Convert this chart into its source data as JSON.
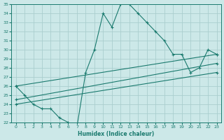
{
  "xlabel": "Humidex (Indice chaleur)",
  "ylabel": "",
  "bg_color": "#cce8e8",
  "line_color": "#1a7a6e",
  "grid_color": "#aacece",
  "xlim": [
    -0.5,
    23.5
  ],
  "ylim": [
    22,
    35
  ],
  "xticks": [
    0,
    1,
    2,
    3,
    4,
    5,
    6,
    7,
    8,
    9,
    10,
    11,
    12,
    13,
    14,
    15,
    16,
    17,
    18,
    19,
    20,
    21,
    22,
    23
  ],
  "yticks": [
    22,
    23,
    24,
    25,
    26,
    27,
    28,
    29,
    30,
    31,
    32,
    33,
    34,
    35
  ],
  "lines": [
    {
      "x": [
        0,
        1,
        2,
        3,
        4,
        5,
        6,
        7,
        8,
        9,
        10,
        11,
        12,
        13,
        14,
        15,
        16,
        17,
        18,
        19,
        20,
        21,
        22,
        23
      ],
      "y": [
        26.0,
        25.0,
        24.0,
        23.5,
        23.5,
        22.5,
        22.0,
        21.5,
        27.5,
        30.0,
        34.0,
        32.5,
        35.0,
        35.0,
        34.0,
        33.0,
        32.0,
        31.0,
        29.5,
        29.5,
        27.5,
        28.0,
        30.0,
        29.5
      ]
    },
    {
      "x": [
        0,
        23
      ],
      "y": [
        24.0,
        27.5
      ]
    },
    {
      "x": [
        0,
        23
      ],
      "y": [
        24.5,
        28.5
      ]
    },
    {
      "x": [
        0,
        23
      ],
      "y": [
        26.0,
        29.5
      ]
    }
  ]
}
